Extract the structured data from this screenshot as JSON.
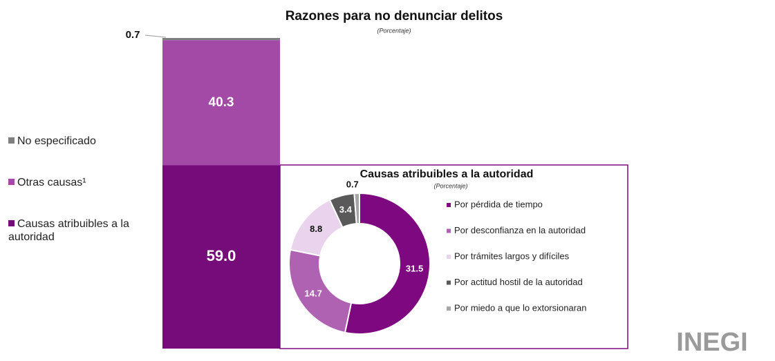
{
  "chart_data": [
    {
      "type": "stacked-bar",
      "title": "Razones para no denunciar delitos",
      "subtitle": "(Porcentaje)",
      "series": [
        {
          "name": "Causas atribuibles a la autoridad",
          "color": "#760c79",
          "values": [
            59.0
          ],
          "value_labels": [
            "59.0"
          ]
        },
        {
          "name": "Otras causas¹",
          "color": "#a24aa5",
          "values": [
            40.3
          ]
        },
        {
          "name": "No especificado",
          "color": "#7f7f7f",
          "values": [
            0.7
          ]
        }
      ]
    },
    {
      "type": "donut",
      "title": "Causas atribuibles a la autoridad",
      "subtitle": "(Porcentaje)",
      "categories": [
        "Por pérdida de tiempo",
        "Por desconfianza en la autoridad",
        "Por trámites largos y difíciles",
        "Por actitud hostil de la autoridad",
        "Por miedo a que lo extorsionaran"
      ],
      "values": [
        31.5,
        14.7,
        8.8,
        3.4,
        0.7
      ],
      "colors": [
        "#7e087f",
        "#b062b2",
        "#ead3ec",
        "#595959",
        "#a6a6a6"
      ]
    }
  ],
  "logo": "INEGI"
}
